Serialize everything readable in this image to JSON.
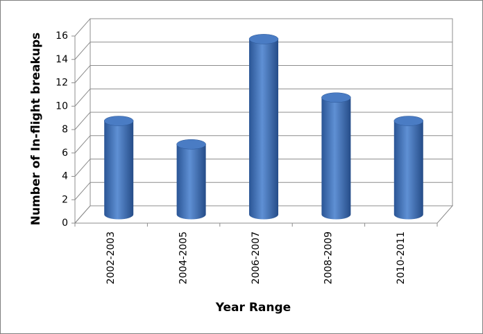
{
  "chart_data": {
    "type": "bar",
    "style": "3d-cylinder",
    "x_label": "Year Range",
    "y_label": "Number of In-flight breakups",
    "categories": [
      "2002-2003",
      "2004-2005",
      "2006-2007",
      "2008-2009",
      "2010-2011"
    ],
    "values": [
      8,
      6,
      15,
      10,
      8
    ],
    "color": "#3a6db5",
    "ylim": [
      0,
      16
    ],
    "yticks": [
      0,
      2,
      4,
      6,
      8,
      10,
      12,
      14,
      16
    ],
    "grid": true
  }
}
